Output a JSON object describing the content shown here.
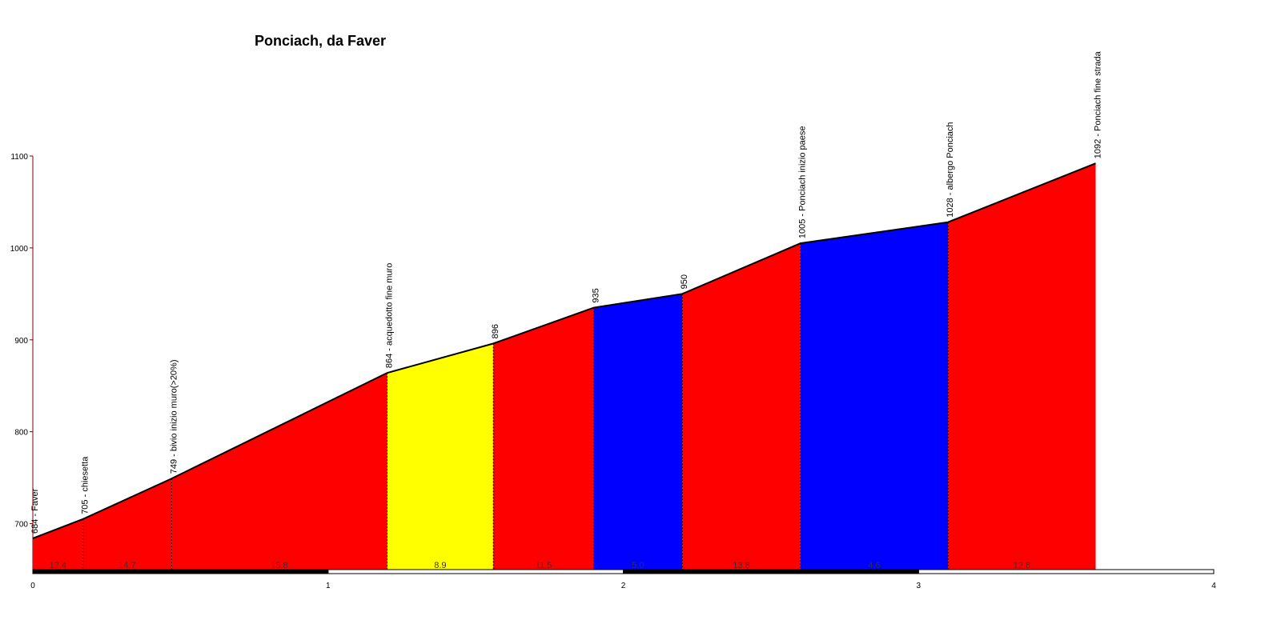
{
  "chart_data": {
    "type": "profile",
    "title": "Ponciach, da Faver",
    "x": [
      0,
      0.17,
      0.47,
      1.2,
      1.56,
      1.9,
      2.2,
      2.6,
      3.1,
      3.6
    ],
    "series": [
      {
        "values": [
          684,
          705,
          749,
          864,
          896,
          935,
          950,
          1005,
          1028,
          1092
        ]
      }
    ],
    "point_labels": [
      "684 - Faver",
      "705 - chiesetta",
      "749 - bivio inizio muro(>20%)",
      "864 - acquedotto fine muro",
      "896",
      "935",
      "950",
      "1005 - Ponciach inizio paese",
      "1028 - albergo Ponciach",
      "1092 - Ponciach fine strada"
    ],
    "gradients": [
      12.4,
      14.7,
      15.8,
      8.9,
      11.5,
      5.0,
      13.8,
      4.6,
      12.8
    ],
    "gradient_labels": [
      "12.4",
      "14.7",
      "15.8",
      "8.9",
      "11.5",
      "5.0",
      "13.8",
      "4.6",
      "12.8"
    ],
    "segment_colors": [
      "#ff0000",
      "#ff0000",
      "#ff0000",
      "#ffff00",
      "#ff0000",
      "#0000ff",
      "#ff0000",
      "#0000ff",
      "#ff0000"
    ],
    "xlim": [
      0,
      4
    ],
    "xticks": [
      0,
      1,
      2,
      3,
      4
    ],
    "ylim": [
      650,
      1100
    ],
    "yticks": [
      700,
      800,
      900,
      1000,
      1100
    ]
  }
}
